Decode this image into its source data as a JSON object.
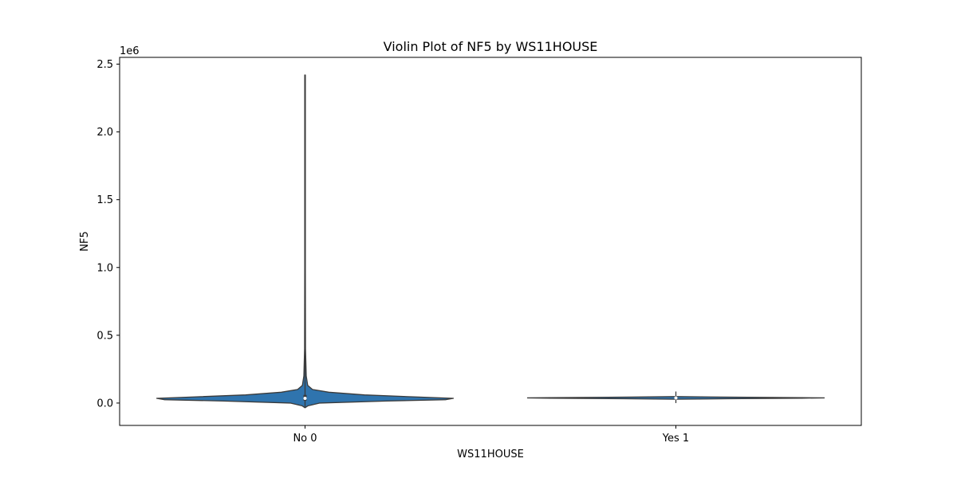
{
  "chart_data": {
    "type": "violin",
    "title": "Violin Plot of NF5 by WS11HOUSE",
    "xlabel": "WS11HOUSE",
    "ylabel": "NF5",
    "y_offset_text": "1e6",
    "categories": [
      "No 0",
      "Yes 1"
    ],
    "y_ticks": [
      0.0,
      0.5,
      1.0,
      1.5,
      2.0,
      2.5
    ],
    "y_tick_labels": [
      "0.0",
      "0.5",
      "1.0",
      "1.5",
      "2.0",
      "2.5"
    ],
    "ylim": [
      -0.165,
      2.55
    ],
    "y_scale": 1000000,
    "grid": false,
    "violins": [
      {
        "category": "No 0",
        "color": "#2f74ae",
        "min": -0.03,
        "max": 2.42,
        "median": 0.035,
        "q1": 0.018,
        "q3": 0.06,
        "profile": [
          [
            -0.035,
            0.0
          ],
          [
            -0.02,
            0.02
          ],
          [
            0.0,
            0.1
          ],
          [
            0.015,
            0.55
          ],
          [
            0.025,
            0.95
          ],
          [
            0.035,
            1.0
          ],
          [
            0.045,
            0.75
          ],
          [
            0.06,
            0.4
          ],
          [
            0.08,
            0.16
          ],
          [
            0.1,
            0.05
          ],
          [
            0.13,
            0.018
          ],
          [
            0.2,
            0.008
          ],
          [
            0.4,
            0.003
          ],
          [
            1.0,
            0.002
          ],
          [
            2.42,
            0.002
          ]
        ]
      },
      {
        "category": "Yes 1",
        "color": "#2f74ae",
        "min": 0.0,
        "max": 0.085,
        "median": 0.038,
        "q1": 0.033,
        "q3": 0.042,
        "profile": [
          [
            0.028,
            0.0
          ],
          [
            0.032,
            0.35
          ],
          [
            0.036,
            0.85
          ],
          [
            0.038,
            1.0
          ],
          [
            0.04,
            0.85
          ],
          [
            0.044,
            0.3
          ],
          [
            0.048,
            0.0
          ]
        ]
      }
    ]
  }
}
